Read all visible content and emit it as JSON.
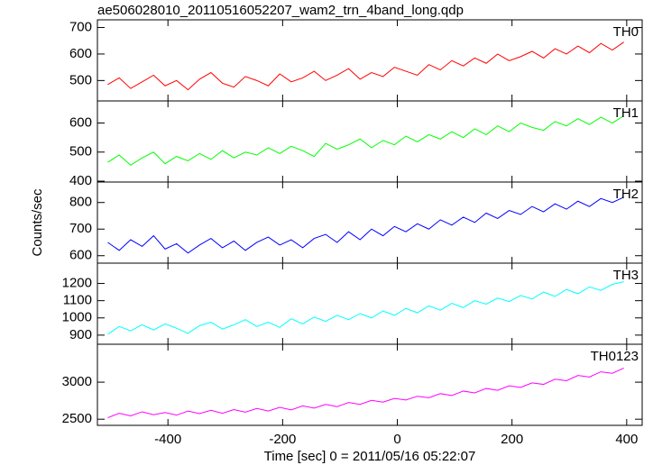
{
  "chart_data": {
    "type": "line",
    "title": "ae506028010_20110516052207_wam2_trn_4band_long.qdp",
    "x_label": "Time [sec] 0 = 2011/05/16 05:22:07",
    "y_label": "Counts/sec",
    "xlim": [
      -523,
      427
    ],
    "xticks": [
      -400,
      -200,
      0,
      200,
      400
    ],
    "x": [
      -505,
      -485,
      -465,
      -445,
      -425,
      -405,
      -385,
      -365,
      -345,
      -325,
      -305,
      -285,
      -265,
      -245,
      -225,
      -205,
      -185,
      -165,
      -145,
      -125,
      -105,
      -85,
      -65,
      -45,
      -25,
      -5,
      15,
      35,
      55,
      75,
      95,
      115,
      135,
      155,
      175,
      195,
      215,
      235,
      255,
      275,
      295,
      315,
      335,
      355,
      375,
      395
    ],
    "series": [
      {
        "name": "TH0",
        "color": "#ff0000",
        "ylim": [
          423,
          729
        ],
        "yticks": [
          500,
          600,
          700
        ],
        "values": [
          485,
          510,
          470,
          495,
          520,
          480,
          500,
          465,
          505,
          530,
          490,
          475,
          515,
          500,
          480,
          525,
          495,
          510,
          535,
          500,
          520,
          545,
          505,
          530,
          515,
          550,
          535,
          520,
          560,
          540,
          575,
          555,
          585,
          565,
          600,
          575,
          590,
          610,
          585,
          620,
          600,
          630,
          605,
          640,
          615,
          645
        ]
      },
      {
        "name": "TH1",
        "color": "#00ff00",
        "ylim": [
          397,
          676
        ],
        "yticks": [
          400,
          500,
          600
        ],
        "values": [
          465,
          490,
          455,
          480,
          500,
          460,
          485,
          470,
          495,
          475,
          505,
          480,
          500,
          490,
          515,
          495,
          520,
          505,
          485,
          530,
          510,
          525,
          545,
          515,
          540,
          525,
          555,
          535,
          560,
          545,
          570,
          550,
          580,
          560,
          590,
          570,
          600,
          585,
          575,
          605,
          590,
          615,
          595,
          620,
          600,
          625
        ]
      },
      {
        "name": "TH2",
        "color": "#0000ff",
        "ylim": [
          572,
          877
        ],
        "yticks": [
          600,
          700,
          800
        ],
        "values": [
          650,
          620,
          660,
          635,
          675,
          625,
          645,
          610,
          640,
          665,
          630,
          655,
          620,
          650,
          670,
          640,
          660,
          630,
          665,
          680,
          650,
          690,
          660,
          700,
          675,
          710,
          690,
          720,
          700,
          735,
          715,
          745,
          725,
          760,
          740,
          770,
          755,
          785,
          765,
          795,
          775,
          805,
          785,
          815,
          800,
          820
        ]
      },
      {
        "name": "TH3",
        "color": "#00ffff",
        "ylim": [
          847,
          1318
        ],
        "yticks": [
          900,
          1000,
          1100,
          1200
        ],
        "values": [
          905,
          950,
          925,
          960,
          930,
          965,
          940,
          910,
          955,
          975,
          935,
          960,
          990,
          950,
          975,
          945,
          995,
          965,
          1005,
          980,
          1015,
          990,
          1025,
          1000,
          1040,
          1015,
          1055,
          1030,
          1070,
          1045,
          1085,
          1060,
          1100,
          1080,
          1115,
          1095,
          1130,
          1110,
          1150,
          1125,
          1165,
          1140,
          1180,
          1160,
          1195,
          1210
        ]
      },
      {
        "name": "TH0123",
        "color": "#ff00ff",
        "ylim": [
          2417,
          3512
        ],
        "yticks": [
          2500,
          3000
        ],
        "values": [
          2520,
          2580,
          2545,
          2600,
          2560,
          2590,
          2555,
          2610,
          2575,
          2620,
          2580,
          2630,
          2595,
          2645,
          2610,
          2660,
          2625,
          2680,
          2650,
          2700,
          2670,
          2725,
          2700,
          2755,
          2730,
          2780,
          2760,
          2810,
          2790,
          2845,
          2820,
          2880,
          2855,
          2915,
          2890,
          2950,
          2930,
          2990,
          2970,
          3040,
          3020,
          3090,
          3070,
          3140,
          3120,
          3190
        ]
      }
    ]
  }
}
